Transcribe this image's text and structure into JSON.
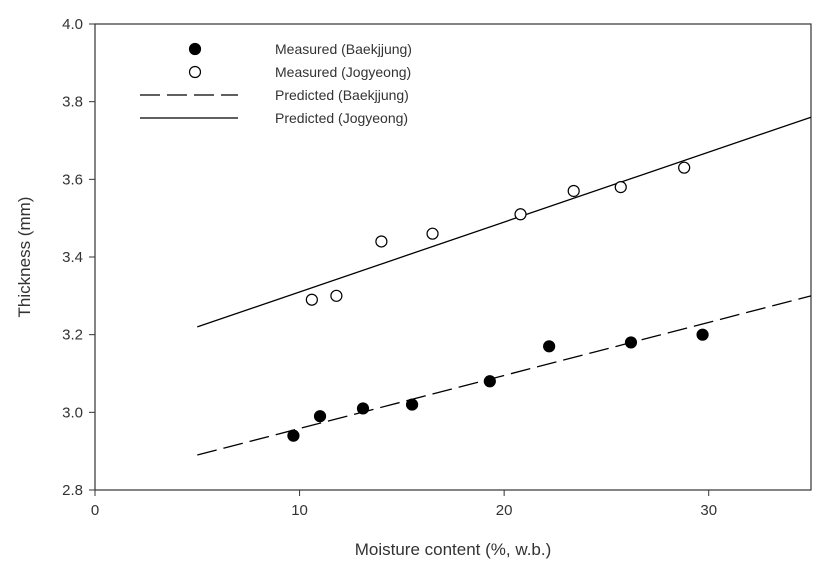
{
  "chart_data": {
    "type": "scatter",
    "title": "",
    "xlabel": "Moisture content (%, w.b.)",
    "ylabel": "Thickness (mm)",
    "xlim": [
      0,
      35
    ],
    "ylim": [
      2.8,
      4.0
    ],
    "xticks": [
      0,
      10,
      20,
      30
    ],
    "yticks": [
      2.8,
      3.0,
      3.2,
      3.4,
      3.6,
      3.8,
      4.0
    ],
    "xtick_labels": [
      "0",
      "10",
      "20",
      "30"
    ],
    "ytick_labels": [
      "2.8",
      "3.0",
      "3.2",
      "3.4",
      "3.6",
      "3.8",
      "4.0"
    ],
    "grid": false,
    "legend_position": "top-left",
    "series": [
      {
        "name": "Measured (Baekjjung)",
        "kind": "points",
        "marker": "filled-circle",
        "color": "#000000",
        "x": [
          9.7,
          11.0,
          13.1,
          15.5,
          19.3,
          22.2,
          26.2,
          29.7
        ],
        "y": [
          2.94,
          2.99,
          3.01,
          3.02,
          3.08,
          3.17,
          3.18,
          3.2
        ]
      },
      {
        "name": "Measured (Jogyeong)",
        "kind": "points",
        "marker": "open-circle",
        "color": "#000000",
        "x": [
          10.6,
          11.8,
          14.0,
          16.5,
          20.8,
          23.4,
          25.7,
          28.8
        ],
        "y": [
          3.29,
          3.3,
          3.44,
          3.46,
          3.51,
          3.57,
          3.58,
          3.63
        ]
      },
      {
        "name": "Predicted (Baekjjung)",
        "kind": "line",
        "dash": "dashed",
        "color": "#000000",
        "x": [
          5,
          35
        ],
        "y": [
          2.89,
          3.3
        ]
      },
      {
        "name": "Predicted (Jogyeong)",
        "kind": "line",
        "dash": "solid",
        "color": "#000000",
        "x": [
          5,
          35
        ],
        "y": [
          3.22,
          3.76
        ]
      }
    ]
  }
}
